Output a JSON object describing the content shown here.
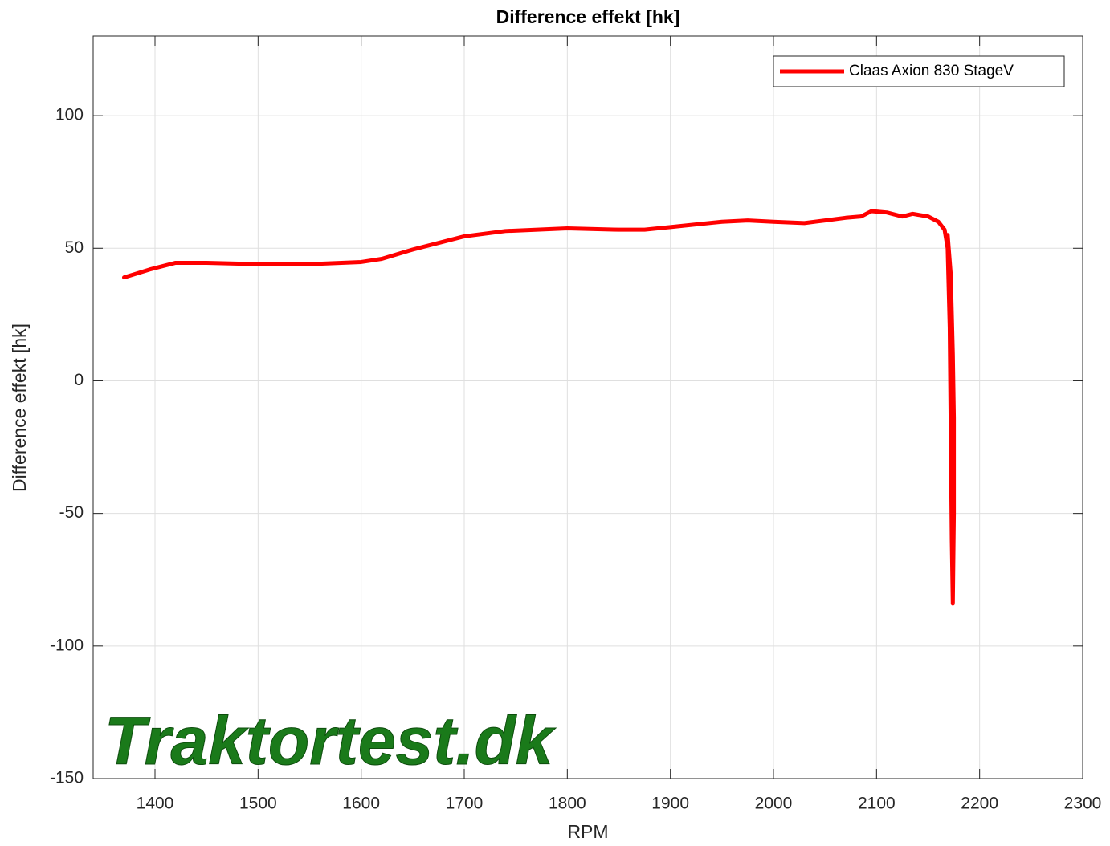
{
  "chart_data": {
    "type": "line",
    "title": "Difference effekt [hk]",
    "xlabel": "RPM",
    "ylabel": "Difference effekt [hk]",
    "watermark": "Traktortest.dk",
    "xlim": [
      1340,
      2300
    ],
    "xticks": [
      1400,
      1500,
      1600,
      1700,
      1800,
      1900,
      2000,
      2100,
      2200,
      2300
    ],
    "ylim": [
      -150,
      130
    ],
    "yticks": [
      -150,
      -100,
      -50,
      0,
      50,
      100
    ],
    "grid": true,
    "legend": "upper right",
    "series": [
      {
        "name": "Claas Axion 830 StageV",
        "color": "#ff0000",
        "x": [
          1370,
          1395,
          1420,
          1450,
          1500,
          1550,
          1600,
          1620,
          1650,
          1700,
          1740,
          1800,
          1850,
          1875,
          1900,
          1950,
          1975,
          2000,
          2030,
          2050,
          2070,
          2085,
          2095,
          2110,
          2125,
          2135,
          2150,
          2160,
          2166,
          2169,
          2171,
          2172,
          2173,
          2174,
          2175,
          2175,
          2174,
          2172,
          2169
        ],
        "values": [
          39,
          42,
          44.5,
          44.5,
          44,
          44,
          44.8,
          46,
          49.5,
          54.5,
          56.5,
          57.5,
          57,
          57,
          58,
          60,
          60.5,
          60,
          59.5,
          60.5,
          61.5,
          62,
          64,
          63.5,
          62,
          63,
          62,
          60,
          57,
          50,
          20,
          -20,
          -60,
          -84,
          -50,
          -14,
          10,
          40,
          55
        ]
      }
    ]
  }
}
